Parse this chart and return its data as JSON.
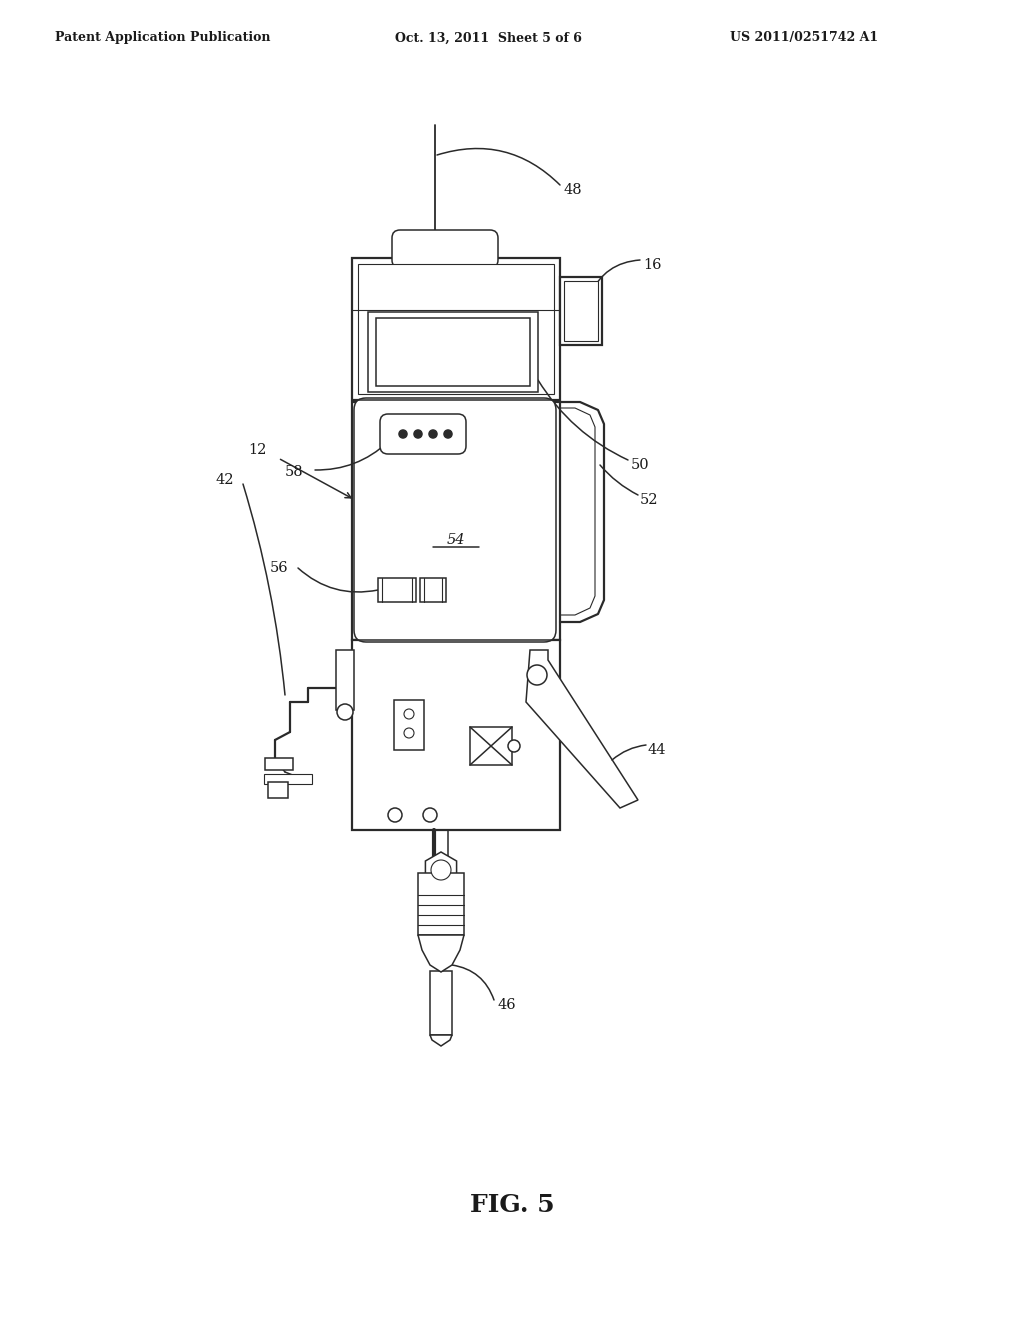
{
  "background_color": "#ffffff",
  "header_left": "Patent Application Publication",
  "header_center": "Oct. 13, 2011  Sheet 5 of 6",
  "header_right": "US 2011/0251742 A1",
  "figure_label": "FIG. 5",
  "line_color": "#2a2a2a",
  "text_color": "#1a1a1a",
  "fig_width": 10.24,
  "fig_height": 13.2,
  "header_fontsize": 9,
  "label_fontsize": 10.5,
  "fig_label_fontsize": 18
}
